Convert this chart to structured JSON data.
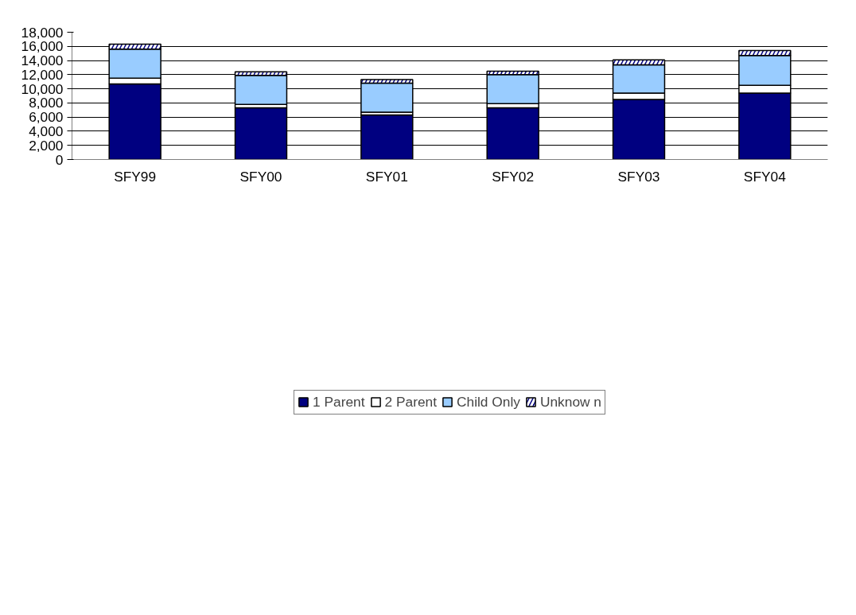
{
  "chart_data": {
    "type": "bar",
    "stacked": true,
    "categories": [
      "SFY99",
      "SFY00",
      "SFY01",
      "SFY02",
      "SFY03",
      "SFY04"
    ],
    "series": [
      {
        "name": "1 Parent",
        "color": "#000080",
        "values": [
          10700,
          7300,
          6300,
          7300,
          8500,
          9400
        ]
      },
      {
        "name": "2 Parent",
        "color": "#ffffff",
        "values": [
          800,
          500,
          400,
          600,
          900,
          1100
        ]
      },
      {
        "name": "Child Only",
        "color": "#99ccff",
        "values": [
          4100,
          4100,
          4100,
          4100,
          4000,
          4200
        ]
      },
      {
        "name": "Unknow n",
        "color": "#000080",
        "values": [
          700,
          500,
          500,
          500,
          700,
          700
        ]
      }
    ],
    "ylim": [
      0,
      18000
    ],
    "yticks": [
      {
        "value": 0,
        "label": "0"
      },
      {
        "value": 2000,
        "label": "2,000"
      },
      {
        "value": 4000,
        "label": "4,000"
      },
      {
        "value": 6000,
        "label": "6,000"
      },
      {
        "value": 8000,
        "label": "8,000"
      },
      {
        "value": 10000,
        "label": "10,000"
      },
      {
        "value": 12000,
        "label": "12,000"
      },
      {
        "value": 14000,
        "label": "14,000"
      },
      {
        "value": 16000,
        "label": "16,000"
      },
      {
        "value": 18000,
        "label": "18,000"
      }
    ],
    "grid": "y",
    "legend": "bottom"
  }
}
